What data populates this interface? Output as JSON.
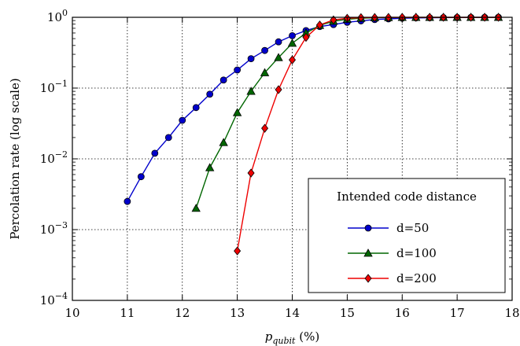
{
  "chart_data": {
    "type": "line",
    "title": "",
    "xlabel": {
      "base": "p",
      "subscript": "qubit",
      "suffix": " (%)"
    },
    "ylabel": "Percolation rate (log scale)",
    "xlim": [
      10,
      18
    ],
    "ylim": [
      0.0001,
      1
    ],
    "y_scale": "log",
    "grid": true,
    "x_ticks": [
      10,
      11,
      12,
      13,
      14,
      15,
      16,
      17,
      18
    ],
    "y_ticks": [
      {
        "value": 0.0001,
        "exp": "−4"
      },
      {
        "value": 0.001,
        "exp": "−3"
      },
      {
        "value": 0.01,
        "exp": "−2"
      },
      {
        "value": 0.1,
        "exp": "−1"
      },
      {
        "value": 1,
        "exp": "0"
      }
    ],
    "legend": {
      "title": "Intended code distance",
      "placement": "lower-right"
    },
    "series": [
      {
        "name": "d=50",
        "color": "#0000cc",
        "marker": "circle",
        "x": [
          11,
          11.25,
          11.5,
          11.75,
          12,
          12.25,
          12.5,
          12.75,
          13,
          13.25,
          13.5,
          13.75,
          14,
          14.25,
          14.5,
          14.75,
          15,
          15.25,
          15.5,
          15.75,
          16,
          16.25,
          16.5,
          16.75,
          17,
          17.25,
          17.5,
          17.75
        ],
        "y": [
          0.0025,
          0.0056,
          0.012,
          0.02,
          0.035,
          0.053,
          0.082,
          0.13,
          0.18,
          0.26,
          0.34,
          0.45,
          0.55,
          0.65,
          0.74,
          0.79,
          0.85,
          0.89,
          0.93,
          0.95,
          0.97,
          0.98,
          0.985,
          0.99,
          0.995,
          0.997,
          0.998,
          0.999
        ]
      },
      {
        "name": "d=100",
        "color": "#006600",
        "marker": "triangle",
        "x": [
          12.25,
          12.5,
          12.75,
          13,
          13.25,
          13.5,
          13.75,
          14,
          14.25,
          14.5,
          14.75,
          15,
          15.25,
          15.5,
          15.75,
          16,
          16.25,
          16.5,
          16.75,
          17,
          17.25,
          17.5,
          17.75
        ],
        "y": [
          0.002,
          0.0075,
          0.017,
          0.045,
          0.09,
          0.165,
          0.27,
          0.43,
          0.6,
          0.77,
          0.88,
          0.94,
          0.97,
          0.985,
          0.992,
          0.996,
          0.998,
          0.999,
          0.999,
          0.999,
          0.999,
          0.999,
          0.999
        ]
      },
      {
        "name": "d=200",
        "color": "#ee0000",
        "marker": "diamond",
        "x": [
          13,
          13.25,
          13.5,
          13.75,
          14,
          14.25,
          14.5,
          14.75,
          15,
          15.25,
          15.5,
          15.75,
          16,
          16.25,
          16.5,
          16.75,
          17,
          17.25,
          17.5,
          17.75
        ],
        "y": [
          0.0005,
          0.0063,
          0.027,
          0.095,
          0.25,
          0.52,
          0.78,
          0.92,
          0.97,
          0.99,
          0.995,
          0.998,
          0.999,
          0.999,
          0.999,
          0.999,
          0.999,
          0.999,
          0.999,
          0.999
        ]
      }
    ]
  }
}
